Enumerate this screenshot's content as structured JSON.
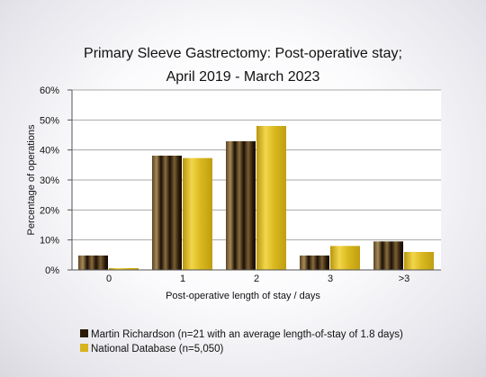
{
  "chart_data": {
    "type": "bar",
    "title_lines": [
      "Primary Sleeve Gastrectomy: Post-operative stay;",
      "April 2019 - March 2023"
    ],
    "xlabel": "Post-operative length of stay / days",
    "ylabel": "Percentage of operations",
    "categories": [
      "0",
      "1",
      "2",
      "3",
      ">3"
    ],
    "ylim": [
      0,
      60
    ],
    "yticks": [
      "0%",
      "10%",
      "20%",
      "30%",
      "40%",
      "50%",
      "60%"
    ],
    "grid": true,
    "legend_position": "bottom-left",
    "series": [
      {
        "name": "Martin Richardson (n=21 with an average length-of-stay of 1.8 days)",
        "values": [
          4.8,
          38.1,
          42.9,
          4.8,
          9.5
        ],
        "color": "#2a1a08"
      },
      {
        "name": "National Database (n=5,050)",
        "values": [
          0.6,
          37.3,
          48.0,
          8.0,
          6.0
        ],
        "color": "#d6b41e"
      }
    ]
  }
}
